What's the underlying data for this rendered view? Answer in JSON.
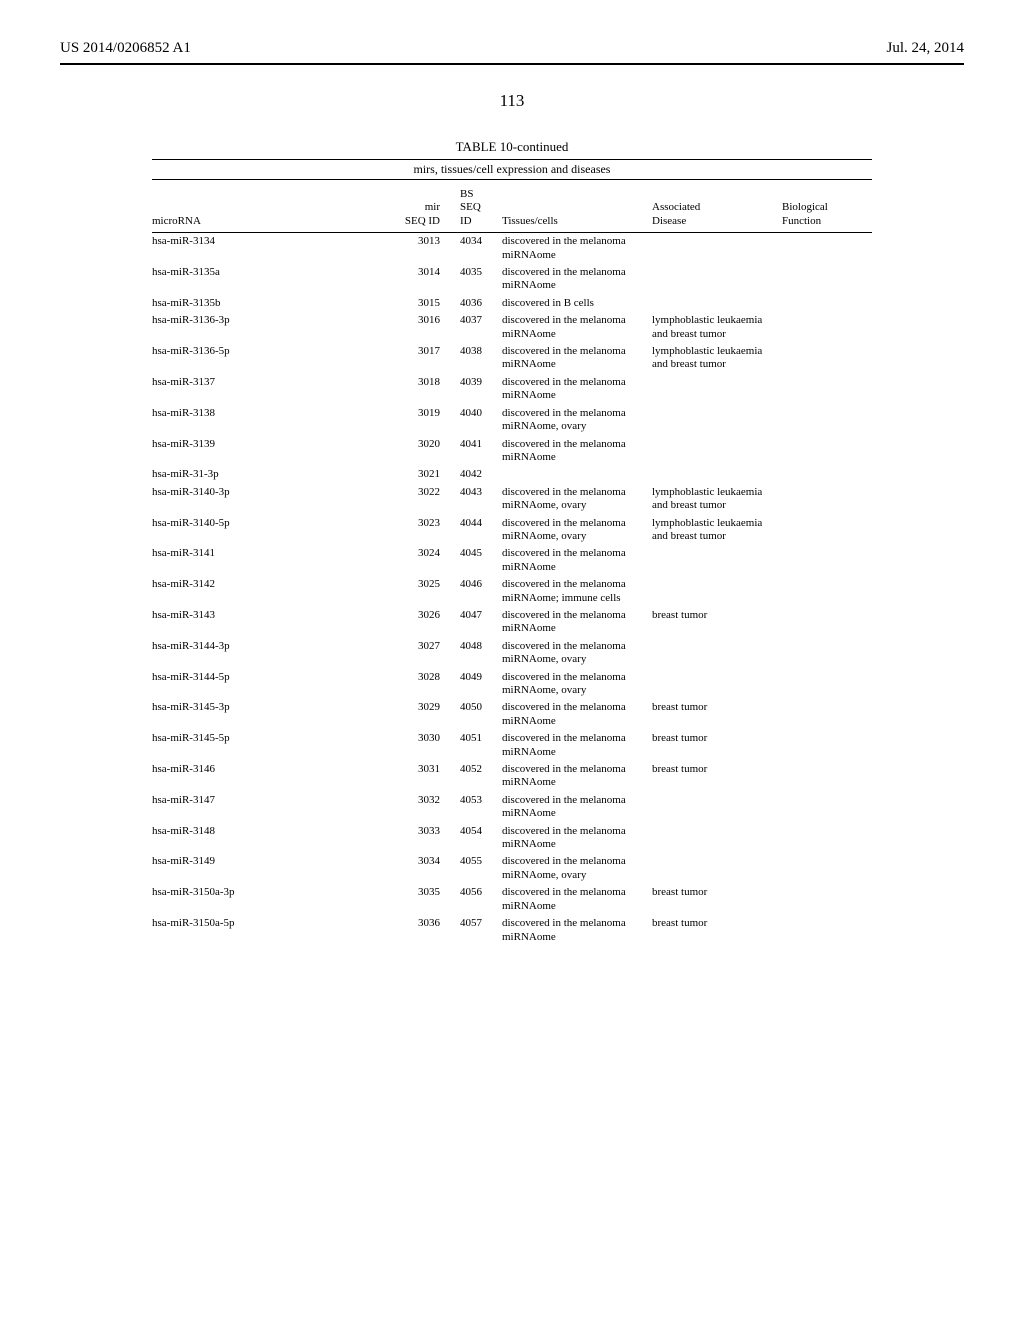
{
  "header": {
    "left": "US 2014/0206852 A1",
    "right": "Jul. 24, 2014"
  },
  "page_number": "113",
  "table": {
    "title": "TABLE 10-continued",
    "subtitle": "mirs, tissues/cell expression and diseases",
    "columns": {
      "microRNA": "microRNA",
      "mir_seq": "mir\nSEQ ID",
      "bs_seq": "BS\nSEQ\nID",
      "tissues": "Tissues/cells",
      "associated": "Associated\nDisease",
      "biological": "Biological\nFunction"
    },
    "rows": [
      {
        "microRNA": "hsa-miR-3134",
        "mir": "3013",
        "bs": "4034",
        "tissues": "discovered in the melanoma miRNAome",
        "assoc": "",
        "bio": ""
      },
      {
        "microRNA": "hsa-miR-3135a",
        "mir": "3014",
        "bs": "4035",
        "tissues": "discovered in the melanoma miRNAome",
        "assoc": "",
        "bio": ""
      },
      {
        "microRNA": "hsa-miR-3135b",
        "mir": "3015",
        "bs": "4036",
        "tissues": "discovered in B cells",
        "assoc": "",
        "bio": ""
      },
      {
        "microRNA": "hsa-miR-3136-3p",
        "mir": "3016",
        "bs": "4037",
        "tissues": "discovered in the melanoma miRNAome",
        "assoc": "lymphoblastic leukaemia and breast tumor",
        "bio": ""
      },
      {
        "microRNA": "hsa-miR-3136-5p",
        "mir": "3017",
        "bs": "4038",
        "tissues": "discovered in the melanoma miRNAome",
        "assoc": "lymphoblastic leukaemia and breast tumor",
        "bio": ""
      },
      {
        "microRNA": "hsa-miR-3137",
        "mir": "3018",
        "bs": "4039",
        "tissues": "discovered in the melanoma miRNAome",
        "assoc": "",
        "bio": ""
      },
      {
        "microRNA": "hsa-miR-3138",
        "mir": "3019",
        "bs": "4040",
        "tissues": "discovered in the melanoma miRNAome, ovary",
        "assoc": "",
        "bio": ""
      },
      {
        "microRNA": "hsa-miR-3139",
        "mir": "3020",
        "bs": "4041",
        "tissues": "discovered in the melanoma miRNAome",
        "assoc": "",
        "bio": ""
      },
      {
        "microRNA": "hsa-miR-31-3p",
        "mir": "3021",
        "bs": "4042",
        "tissues": "",
        "assoc": "",
        "bio": ""
      },
      {
        "microRNA": "hsa-miR-3140-3p",
        "mir": "3022",
        "bs": "4043",
        "tissues": "discovered in the melanoma miRNAome, ovary",
        "assoc": "lymphoblastic leukaemia and breast tumor",
        "bio": ""
      },
      {
        "microRNA": "hsa-miR-3140-5p",
        "mir": "3023",
        "bs": "4044",
        "tissues": "discovered in the melanoma miRNAome, ovary",
        "assoc": "lymphoblastic leukaemia and breast tumor",
        "bio": ""
      },
      {
        "microRNA": "hsa-miR-3141",
        "mir": "3024",
        "bs": "4045",
        "tissues": "discovered in the melanoma miRNAome",
        "assoc": "",
        "bio": ""
      },
      {
        "microRNA": "hsa-miR-3142",
        "mir": "3025",
        "bs": "4046",
        "tissues": "discovered in the melanoma miRNAome; immune cells",
        "assoc": "",
        "bio": ""
      },
      {
        "microRNA": "hsa-miR-3143",
        "mir": "3026",
        "bs": "4047",
        "tissues": "discovered in the melanoma miRNAome",
        "assoc": "breast tumor",
        "bio": ""
      },
      {
        "microRNA": "hsa-miR-3144-3p",
        "mir": "3027",
        "bs": "4048",
        "tissues": "discovered in the melanoma miRNAome, ovary",
        "assoc": "",
        "bio": ""
      },
      {
        "microRNA": "hsa-miR-3144-5p",
        "mir": "3028",
        "bs": "4049",
        "tissues": "discovered in the melanoma miRNAome, ovary",
        "assoc": "",
        "bio": ""
      },
      {
        "microRNA": "hsa-miR-3145-3p",
        "mir": "3029",
        "bs": "4050",
        "tissues": "discovered in the melanoma miRNAome",
        "assoc": "breast tumor",
        "bio": ""
      },
      {
        "microRNA": "hsa-miR-3145-5p",
        "mir": "3030",
        "bs": "4051",
        "tissues": "discovered in the melanoma miRNAome",
        "assoc": "breast tumor",
        "bio": ""
      },
      {
        "microRNA": "hsa-miR-3146",
        "mir": "3031",
        "bs": "4052",
        "tissues": "discovered in the melanoma miRNAome",
        "assoc": "breast tumor",
        "bio": ""
      },
      {
        "microRNA": "hsa-miR-3147",
        "mir": "3032",
        "bs": "4053",
        "tissues": "discovered in the melanoma miRNAome",
        "assoc": "",
        "bio": ""
      },
      {
        "microRNA": "hsa-miR-3148",
        "mir": "3033",
        "bs": "4054",
        "tissues": "discovered in the melanoma miRNAome",
        "assoc": "",
        "bio": ""
      },
      {
        "microRNA": "hsa-miR-3149",
        "mir": "3034",
        "bs": "4055",
        "tissues": "discovered in the melanoma miRNAome, ovary",
        "assoc": "",
        "bio": ""
      },
      {
        "microRNA": "hsa-miR-3150a-3p",
        "mir": "3035",
        "bs": "4056",
        "tissues": "discovered in the melanoma miRNAome",
        "assoc": "breast tumor",
        "bio": ""
      },
      {
        "microRNA": "hsa-miR-3150a-5p",
        "mir": "3036",
        "bs": "4057",
        "tissues": "discovered in the melanoma miRNAome",
        "assoc": "breast tumor",
        "bio": ""
      }
    ]
  }
}
